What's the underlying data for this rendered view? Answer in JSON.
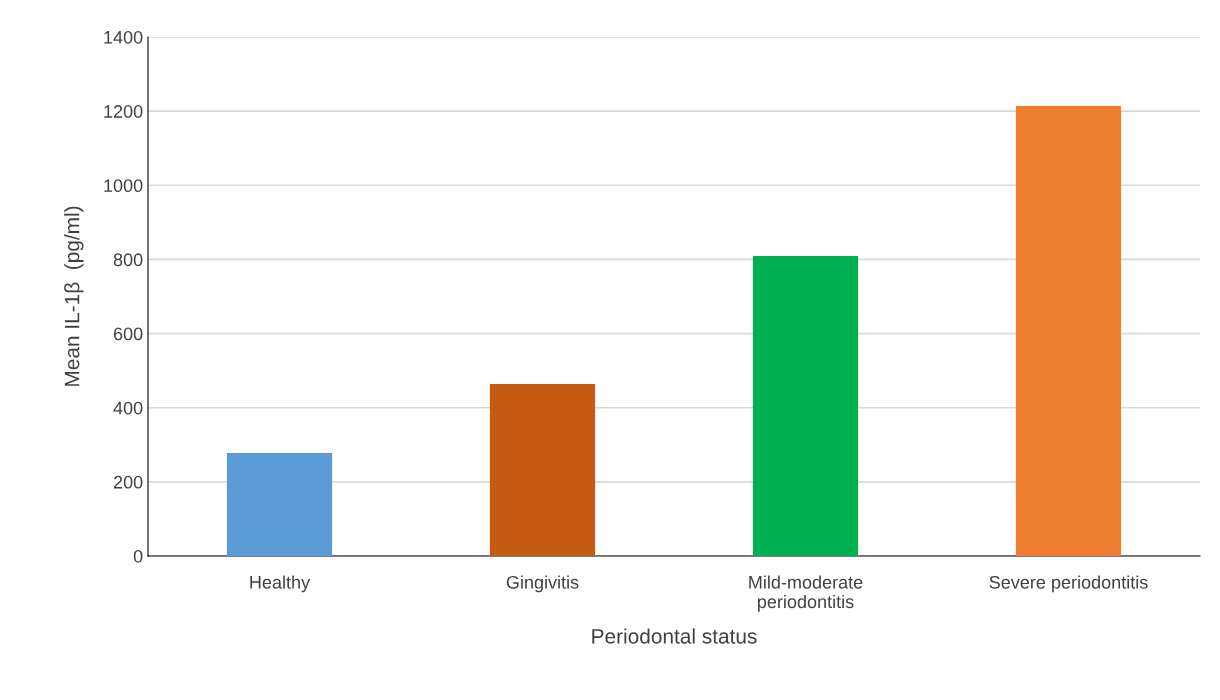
{
  "chart_data": {
    "type": "bar",
    "xlabel": "Periodontal status",
    "ylabel": "Mean IL-1β  (pg/ml)",
    "categories": [
      "Healthy",
      "Gingivitis",
      "Mild-moderate\nperiodontitis",
      "Severe periodontitis"
    ],
    "values": [
      278,
      464,
      809,
      1214
    ],
    "colors": [
      "#5b9bd5",
      "#c55a11",
      "#00b050",
      "#ed7d31"
    ],
    "ylim": [
      0,
      1400
    ],
    "yticks": [
      0,
      200,
      400,
      600,
      800,
      1000,
      1200,
      1400
    ],
    "grid": "y"
  }
}
